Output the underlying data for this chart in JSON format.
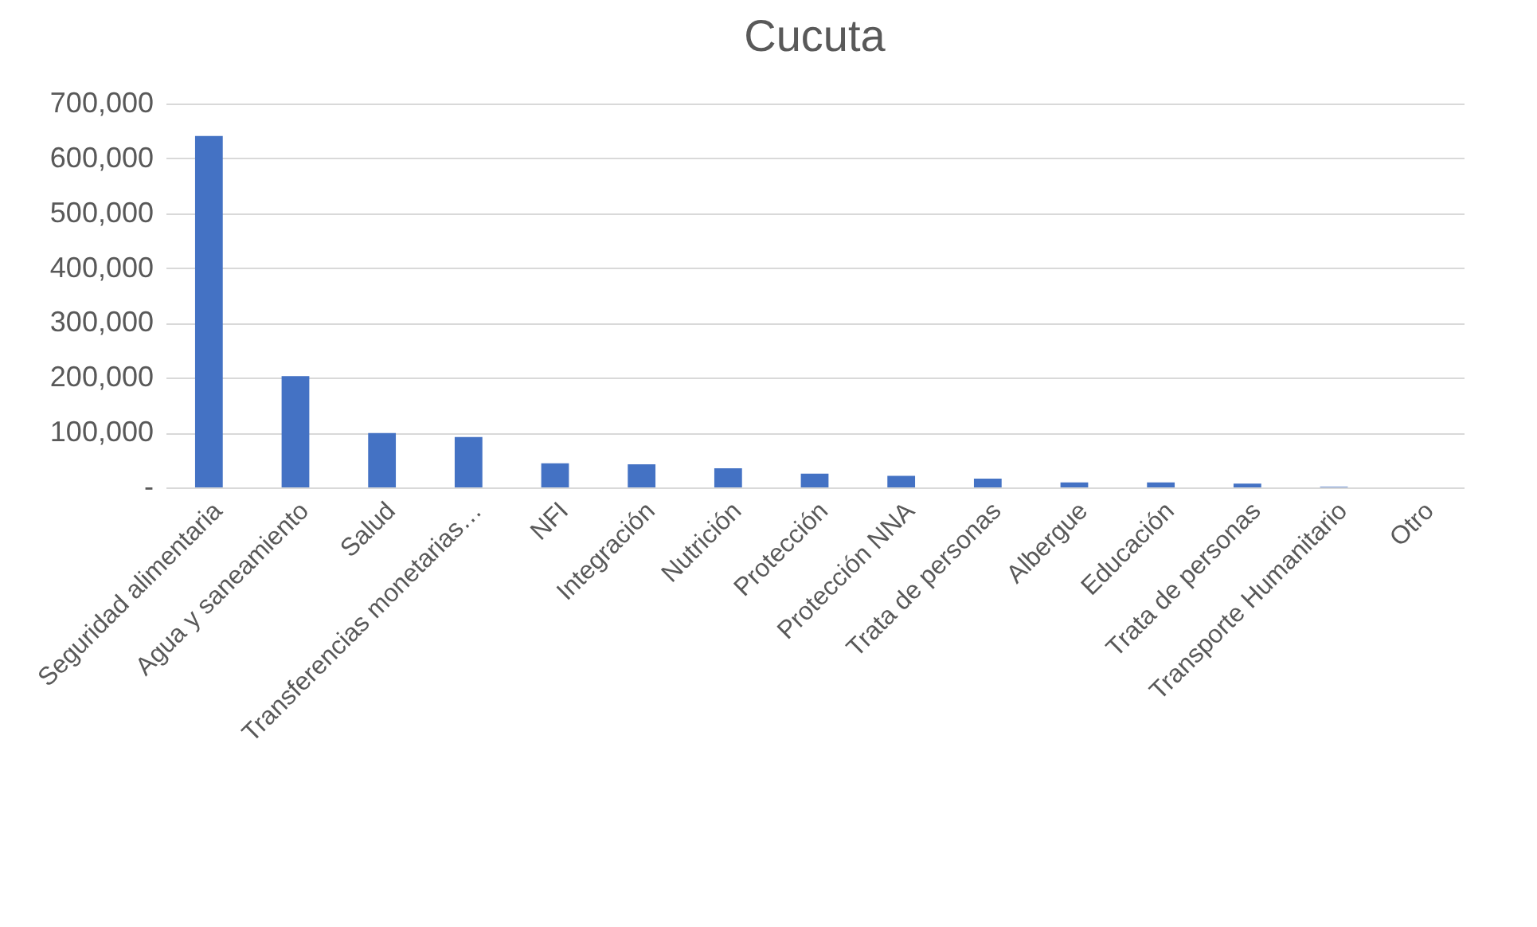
{
  "chart_data": {
    "type": "bar",
    "title": "Cucuta",
    "categories": [
      "Seguridad alimentaria",
      "Agua y saneamiento",
      "Salud",
      "Transferencias monetarias…",
      "NFI",
      "Integración",
      "Nutrición",
      "Protección",
      "Protección NNA",
      "Trata de personas",
      "Albergue",
      "Educación",
      "Trata de personas",
      "Transporte Humanitario",
      "Otro"
    ],
    "values": [
      641000,
      203000,
      99000,
      92000,
      44000,
      42000,
      35000,
      25000,
      21000,
      16000,
      9000,
      9000,
      7000,
      1000,
      0
    ],
    "color": "#4472c4",
    "ylim": [
      0,
      700000
    ],
    "yticks": [
      {
        "value": 0,
        "label": "-"
      },
      {
        "value": 100000,
        "label": "100,000"
      },
      {
        "value": 200000,
        "label": "200,000"
      },
      {
        "value": 300000,
        "label": "300,000"
      },
      {
        "value": 400000,
        "label": "400,000"
      },
      {
        "value": 500000,
        "label": "500,000"
      },
      {
        "value": 600000,
        "label": "600,000"
      },
      {
        "value": 700000,
        "label": "700,000"
      }
    ],
    "grid": "y"
  }
}
